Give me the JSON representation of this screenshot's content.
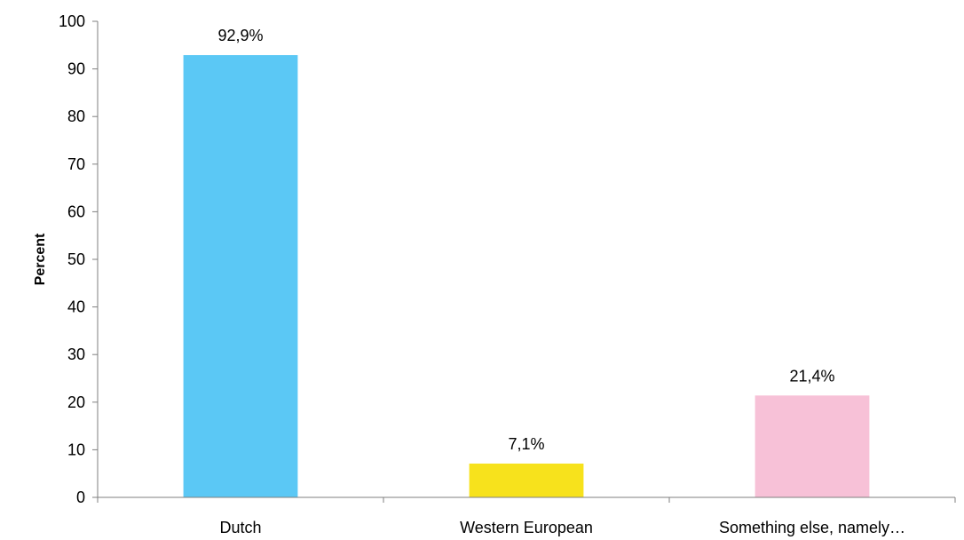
{
  "chart_data": {
    "type": "bar",
    "title": "",
    "xlabel": "",
    "ylabel": "Percent",
    "ylim": [
      0,
      100
    ],
    "yticks": [
      0,
      10,
      20,
      30,
      40,
      50,
      60,
      70,
      80,
      90,
      100
    ],
    "grid": false,
    "categories": [
      "Dutch",
      "Western European",
      "Something else, namely…"
    ],
    "values": [
      92.9,
      7.1,
      21.4
    ],
    "data_labels": [
      "92,9%",
      "7,1%",
      "21,4%"
    ],
    "colors": [
      "#5BC8F5",
      "#F7E21C",
      "#F7C1D7"
    ]
  }
}
